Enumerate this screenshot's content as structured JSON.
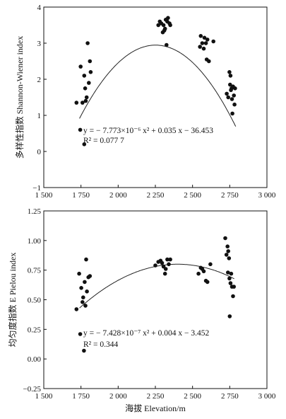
{
  "chart_data": [
    {
      "type": "scatter",
      "ylabel": "多样性指数 Shannon-Wiener index",
      "xlabel": "",
      "xlim": [
        1500,
        3000
      ],
      "ylim": [
        -1,
        4
      ],
      "xticks": [
        "1 500",
        "1 750",
        "2 000",
        "2 250",
        "2 500",
        "2 750",
        "3 000"
      ],
      "xtick_values": [
        1500,
        1750,
        2000,
        2250,
        2500,
        2750,
        3000
      ],
      "yticks": [
        "−1",
        "0",
        "1",
        "2",
        "3",
        "4"
      ],
      "ytick_values": [
        -1,
        0,
        1,
        2,
        3,
        4
      ],
      "equation": "y = − 7.773×10⁻⁶ x² + 0.035 x − 36.453",
      "r2": "R² = 0.077 7",
      "fit": {
        "a": -7.773e-06,
        "b": 0.035,
        "c": -36.453,
        "x_range": [
          1740,
          2790
        ]
      },
      "points": [
        [
          1720,
          1.35
        ],
        [
          1745,
          0.6
        ],
        [
          1748,
          2.35
        ],
        [
          1760,
          1.35
        ],
        [
          1772,
          2.1
        ],
        [
          1778,
          1.75
        ],
        [
          1782,
          1.4
        ],
        [
          1788,
          1.5
        ],
        [
          1795,
          3.0
        ],
        [
          1803,
          1.9
        ],
        [
          1810,
          2.5
        ],
        [
          1815,
          2.2
        ],
        [
          1772,
          0.2
        ],
        [
          2270,
          3.5
        ],
        [
          2280,
          3.6
        ],
        [
          2290,
          3.55
        ],
        [
          2300,
          3.3
        ],
        [
          2305,
          3.5
        ],
        [
          2315,
          3.4
        ],
        [
          2320,
          3.65
        ],
        [
          2325,
          2.95
        ],
        [
          2330,
          3.6
        ],
        [
          2335,
          3.7
        ],
        [
          2345,
          3.55
        ],
        [
          2350,
          3.5
        ],
        [
          2310,
          3.35
        ],
        [
          2550,
          2.9
        ],
        [
          2555,
          3.2
        ],
        [
          2565,
          3.0
        ],
        [
          2575,
          2.85
        ],
        [
          2580,
          3.15
        ],
        [
          2590,
          3.0
        ],
        [
          2595,
          2.55
        ],
        [
          2600,
          3.1
        ],
        [
          2610,
          2.5
        ],
        [
          2640,
          3.05
        ],
        [
          2730,
          1.6
        ],
        [
          2740,
          1.5
        ],
        [
          2748,
          2.2
        ],
        [
          2752,
          1.85
        ],
        [
          2755,
          2.1
        ],
        [
          2758,
          1.7
        ],
        [
          2762,
          1.75
        ],
        [
          2765,
          1.45
        ],
        [
          2768,
          1.05
        ],
        [
          2772,
          1.8
        ],
        [
          2778,
          1.55
        ],
        [
          2782,
          1.3
        ],
        [
          2786,
          1.75
        ]
      ]
    },
    {
      "type": "scatter",
      "ylabel": "均匀度指数 E Pielou index",
      "xlabel": "海拔 Elevation/m",
      "xlim": [
        1500,
        3000
      ],
      "ylim": [
        -0.25,
        1.25
      ],
      "xticks": [
        "1 500",
        "1 750",
        "2 000",
        "2 250",
        "2 500",
        "2 750",
        "3 000"
      ],
      "xtick_values": [
        1500,
        1750,
        2000,
        2250,
        2500,
        2750,
        3000
      ],
      "yticks": [
        "−0.25",
        "0.00",
        "0.25",
        "0.50",
        "0.75",
        "1.00",
        "1.25"
      ],
      "ytick_values": [
        -0.25,
        0,
        0.25,
        0.5,
        0.75,
        1.0,
        1.25
      ],
      "equation": "y = − 7.428×10⁻⁷ x² + 0.004 x − 3.452",
      "r2": "R² = 0.344",
      "fit": {
        "vertex_x": 2400,
        "vertex_y": 0.8,
        "left_x": 1740,
        "left_y": 0.43,
        "x_range": [
          1740,
          2780
        ]
      },
      "points": [
        [
          1720,
          0.42
        ],
        [
          1738,
          0.72
        ],
        [
          1745,
          0.21
        ],
        [
          1752,
          0.6
        ],
        [
          1760,
          0.48
        ],
        [
          1765,
          0.52
        ],
        [
          1770,
          0.07
        ],
        [
          1775,
          0.65
        ],
        [
          1780,
          0.45
        ],
        [
          1785,
          0.84
        ],
        [
          1790,
          0.57
        ],
        [
          1800,
          0.69
        ],
        [
          1810,
          0.7
        ],
        [
          2250,
          0.79
        ],
        [
          2270,
          0.82
        ],
        [
          2285,
          0.83
        ],
        [
          2295,
          0.81
        ],
        [
          2305,
          0.78
        ],
        [
          2315,
          0.72
        ],
        [
          2320,
          0.76
        ],
        [
          2330,
          0.84
        ],
        [
          2340,
          0.8
        ],
        [
          2350,
          0.84
        ],
        [
          2540,
          0.72
        ],
        [
          2555,
          0.77
        ],
        [
          2565,
          0.76
        ],
        [
          2575,
          0.74
        ],
        [
          2590,
          0.66
        ],
        [
          2600,
          0.65
        ],
        [
          2620,
          0.8
        ],
        [
          2720,
          1.02
        ],
        [
          2728,
          0.88
        ],
        [
          2735,
          0.95
        ],
        [
          2738,
          0.73
        ],
        [
          2740,
          0.91
        ],
        [
          2745,
          0.85
        ],
        [
          2748,
          0.68
        ],
        [
          2750,
          0.36
        ],
        [
          2755,
          0.64
        ],
        [
          2760,
          0.72
        ],
        [
          2765,
          0.61
        ],
        [
          2772,
          0.53
        ],
        [
          2778,
          0.61
        ]
      ]
    }
  ]
}
